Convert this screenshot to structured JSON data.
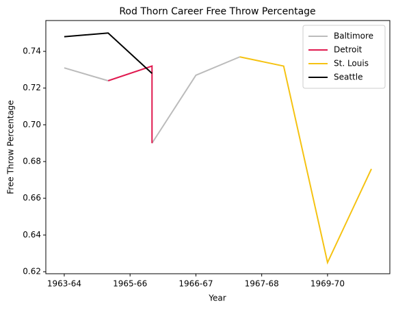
{
  "chart_data": {
    "type": "line",
    "title": "Rod Thorn Career Free Throw Percentage",
    "xlabel": "Year",
    "ylabel": "Free Throw Percentage",
    "xlim": [
      -0.42,
      7.42
    ],
    "xticks": [
      {
        "value": 0,
        "label": "1963-64"
      },
      {
        "value": 1.5,
        "label": "1965-66"
      },
      {
        "value": 3,
        "label": "1966-67"
      },
      {
        "value": 4.5,
        "label": "1967-68"
      },
      {
        "value": 6,
        "label": "1969-70"
      }
    ],
    "ylim": [
      0.6189,
      0.7568
    ],
    "yticks": [
      0.62,
      0.64,
      0.66,
      0.68,
      {
        "value": 0.7,
        "label": "0.70"
      },
      0.72,
      0.74
    ],
    "legend": "upper right",
    "series": [
      {
        "name": "Baltimore",
        "color": "#bbbbbb",
        "x": [
          0,
          1,
          2,
          2,
          3,
          4
        ],
        "values": [
          0.731,
          0.724,
          null,
          0.69,
          0.727,
          0.737
        ]
      },
      {
        "name": "Detroit",
        "color": "#e0194f",
        "x": [
          1,
          2,
          2
        ],
        "values": [
          0.724,
          0.732,
          0.69
        ]
      },
      {
        "name": "St. Louis",
        "color": "#f5c211",
        "x": [
          4,
          5,
          6,
          7
        ],
        "values": [
          0.737,
          0.732,
          0.625,
          0.676
        ]
      },
      {
        "name": "Seattle",
        "color": "#000000",
        "x": [
          0,
          1,
          2
        ],
        "values": [
          0.748,
          0.75,
          0.728
        ]
      }
    ]
  }
}
